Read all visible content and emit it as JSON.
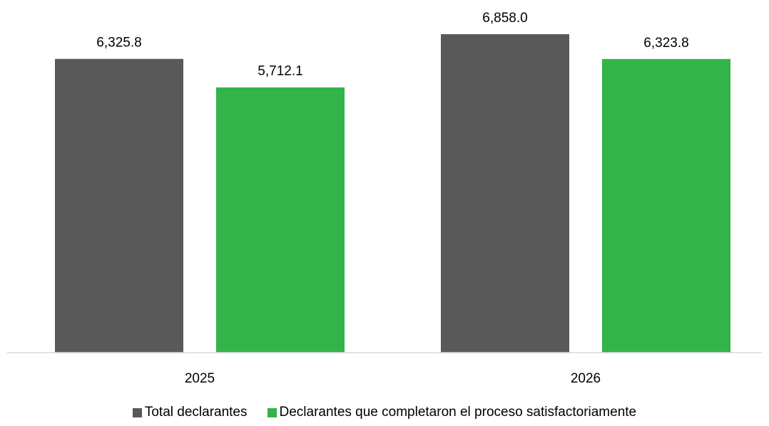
{
  "chart_data": {
    "type": "bar",
    "categories": [
      "2025",
      "2026"
    ],
    "series": [
      {
        "name": "Total declarantes",
        "values": [
          6325.8,
          6858.0
        ],
        "labels": [
          "6,325.8",
          "6,858.0"
        ],
        "color": "#595959"
      },
      {
        "name": "Declarantes que completaron el proceso satisfactoriamente",
        "values": [
          5712.1,
          6323.8
        ],
        "labels": [
          "5,712.1",
          "6,323.8"
        ],
        "color": "#33b34a"
      }
    ],
    "title": "",
    "xlabel": "",
    "ylabel": "",
    "ylim": [
      0,
      7000
    ],
    "grid": false,
    "legend_position": "bottom"
  }
}
